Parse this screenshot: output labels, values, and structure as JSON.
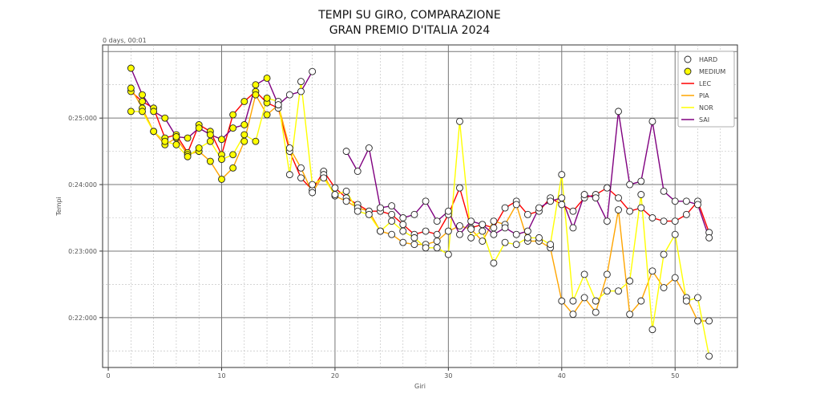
{
  "chart_data": {
    "type": "line",
    "title_lines": [
      "TEMPI SU GIRO, COMPARAZIONE",
      "GRAN PREMIO D'ITALIA 2024"
    ],
    "xlabel": "Giri",
    "ylabel": "Tempi",
    "y_offset_label": "0 days, 00:01",
    "xlim": [
      -0.5,
      55.5
    ],
    "ylim": [
      21.25,
      26.1
    ],
    "x_ticks": [
      0,
      10,
      20,
      30,
      40,
      50
    ],
    "y_ticks": [
      {
        "value": 22.0,
        "label": "0:22:000"
      },
      {
        "value": 23.0,
        "label": "0:23:000"
      },
      {
        "value": 24.0,
        "label": "0:24:000"
      },
      {
        "value": 25.0,
        "label": "0:25:000"
      }
    ],
    "grid": true,
    "legend_position": "top-right",
    "compounds": [
      {
        "name": "HARD",
        "fill": "#ffffff",
        "until_lap": 999
      },
      {
        "name": "MEDIUM",
        "fill": "#ffff00",
        "until_lap": 14
      }
    ],
    "x": [
      2,
      3,
      4,
      5,
      6,
      7,
      8,
      9,
      10,
      11,
      12,
      13,
      14,
      15,
      16,
      17,
      18,
      19,
      20,
      21,
      22,
      23,
      24,
      25,
      26,
      27,
      28,
      29,
      30,
      31,
      32,
      33,
      34,
      35,
      36,
      37,
      38,
      39,
      40,
      41,
      42,
      43,
      44,
      45,
      46,
      47,
      48,
      49,
      50,
      51,
      52,
      53
    ],
    "series": [
      {
        "name": "LEC",
        "color": "#ff0000",
        "compound_change_lap": 15,
        "values": [
          25.4,
          25.25,
          25.15,
          24.7,
          24.75,
          24.48,
          24.9,
          24.8,
          24.45,
          25.05,
          25.25,
          25.4,
          25.23,
          25.15,
          24.5,
          24.1,
          23.92,
          24.2,
          23.95,
          23.8,
          23.7,
          23.6,
          23.6,
          23.55,
          23.4,
          23.25,
          23.3,
          23.25,
          23.55,
          23.95,
          23.35,
          23.4,
          23.35,
          23.65,
          23.75,
          23.55,
          23.6,
          23.8,
          23.7,
          23.6,
          23.8,
          23.85,
          23.95,
          23.8,
          23.6,
          23.65,
          23.5,
          23.45,
          23.45,
          23.55,
          23.75,
          23.28
        ]
      },
      {
        "name": "PIA",
        "color": "#ffa500",
        "compound_change_lap": 15,
        "values": [
          25.45,
          25.15,
          24.8,
          24.6,
          24.7,
          24.45,
          24.5,
          24.35,
          24.08,
          24.25,
          24.65,
          25.35,
          25.05,
          25.2,
          24.55,
          24.25,
          23.88,
          24.15,
          23.83,
          23.75,
          23.65,
          23.6,
          23.3,
          23.25,
          23.13,
          23.1,
          23.1,
          23.15,
          23.3,
          23.38,
          23.33,
          23.15,
          23.45,
          23.4,
          23.7,
          23.15,
          23.15,
          23.05,
          22.25,
          22.05,
          22.3,
          22.08,
          22.65,
          23.62,
          22.05,
          22.25,
          22.7,
          22.45,
          22.6,
          22.3,
          21.95,
          21.95
        ]
      },
      {
        "name": "NOR",
        "color": "#ffff00",
        "compound_change_lap": 15,
        "values": [
          25.1,
          25.1,
          24.8,
          24.65,
          24.6,
          24.42,
          24.55,
          24.65,
          24.38,
          24.45,
          24.75,
          24.65,
          25.3,
          25.25,
          24.15,
          25.55,
          24.0,
          24.1,
          23.85,
          23.9,
          23.6,
          23.55,
          23.3,
          23.45,
          23.3,
          23.2,
          23.05,
          23.05,
          22.95,
          24.95,
          23.2,
          23.3,
          22.82,
          23.13,
          23.1,
          23.2,
          23.2,
          23.1,
          24.15,
          22.25,
          22.65,
          22.25,
          22.4,
          22.4,
          22.55,
          23.85,
          21.82,
          22.95,
          23.25,
          22.25,
          22.3,
          21.42
        ]
      },
      {
        "name": "SAI",
        "color": "#800080",
        "compound_change_lap": 15,
        "values": [
          25.75,
          25.35,
          25.1,
          25.0,
          24.72,
          24.7,
          24.85,
          24.75,
          24.68,
          24.85,
          24.9,
          25.5,
          25.6,
          25.2,
          25.35,
          25.4,
          25.7,
          null,
          null,
          24.5,
          24.2,
          24.55,
          23.65,
          23.68,
          23.5,
          23.55,
          23.75,
          23.45,
          23.6,
          23.25,
          23.45,
          23.4,
          23.25,
          23.35,
          23.25,
          23.3,
          23.65,
          23.75,
          23.8,
          23.35,
          23.85,
          23.8,
          23.45,
          25.1,
          24.0,
          24.05,
          24.95,
          23.9,
          23.75,
          23.75,
          23.7,
          23.2
        ]
      }
    ]
  }
}
